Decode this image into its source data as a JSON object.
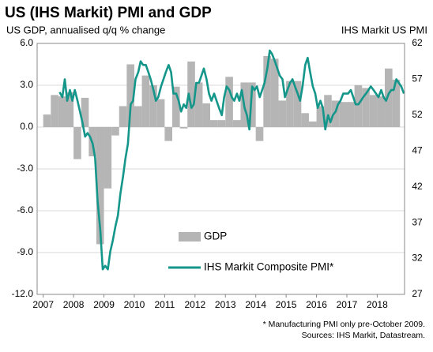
{
  "chart_data": {
    "type": "bar",
    "title": "US (IHS Markit) PMI and GDP",
    "y_label": "US GDP, annualised q/q % change",
    "y2_label": "IHS Markit  US PMI",
    "footnote": "* Manufacturing PMI only pre-October 2009.",
    "source": "Sources: IHS Markit, Datastream.",
    "xlim": [
      2006.8,
      2018.9
    ],
    "xticks": [
      2007,
      2008,
      2009,
      2010,
      2011,
      2012,
      2013,
      2014,
      2015,
      2016,
      2017,
      2018
    ],
    "ylim": [
      -12,
      6
    ],
    "yticks": [
      {
        "value": -12,
        "label": "-12.0"
      },
      {
        "value": -9,
        "label": "-9.0"
      },
      {
        "value": -6,
        "label": "-6.0"
      },
      {
        "value": -3,
        "label": "-3.0"
      },
      {
        "value": 0,
        "label": "0.0"
      },
      {
        "value": 3,
        "label": "3.0"
      },
      {
        "value": 6,
        "label": "6.0"
      }
    ],
    "y2lim": [
      27,
      62
    ],
    "y2ticks": [
      27,
      32,
      37,
      42,
      47,
      52,
      57,
      62
    ],
    "grid": true,
    "series": [
      {
        "name": "GDP",
        "type": "bar",
        "color": "#b5b5b5",
        "x": [
          2007.125,
          2007.375,
          2007.625,
          2007.875,
          2008.125,
          2008.375,
          2008.625,
          2008.875,
          2009.125,
          2009.375,
          2009.625,
          2009.875,
          2010.125,
          2010.375,
          2010.625,
          2010.875,
          2011.125,
          2011.375,
          2011.625,
          2011.875,
          2012.125,
          2012.375,
          2012.625,
          2012.875,
          2013.125,
          2013.375,
          2013.625,
          2013.875,
          2014.125,
          2014.375,
          2014.625,
          2014.875,
          2015.125,
          2015.375,
          2015.625,
          2015.875,
          2016.125,
          2016.375,
          2016.625,
          2016.875,
          2017.125,
          2017.375,
          2017.625,
          2017.875,
          2018.125,
          2018.375,
          2018.625
        ],
        "values": [
          0.9,
          2.3,
          2.2,
          2.5,
          -2.3,
          2.1,
          -2.1,
          -8.4,
          -4.4,
          -0.6,
          1.5,
          4.5,
          1.5,
          3.7,
          3.0,
          2.0,
          -1.0,
          2.9,
          -0.1,
          4.7,
          3.2,
          1.7,
          0.5,
          0.5,
          3.6,
          0.5,
          3.2,
          3.2,
          -1.0,
          5.1,
          4.9,
          1.9,
          3.3,
          3.3,
          1.0,
          0.4,
          1.5,
          2.3,
          1.9,
          1.8,
          1.8,
          3.0,
          2.8,
          2.3,
          2.2,
          4.2,
          3.4
        ]
      },
      {
        "name": "IHS Markit Composite PMI*",
        "type": "line",
        "axis": "y2",
        "color": "#14968a",
        "x": [
          2007.54,
          2007.63,
          2007.71,
          2007.79,
          2007.88,
          2007.96,
          2008.04,
          2008.13,
          2008.21,
          2008.29,
          2008.38,
          2008.46,
          2008.54,
          2008.63,
          2008.71,
          2008.79,
          2008.88,
          2008.96,
          2009.04,
          2009.13,
          2009.21,
          2009.29,
          2009.38,
          2009.46,
          2009.54,
          2009.63,
          2009.71,
          2009.79,
          2009.88,
          2009.96,
          2010.04,
          2010.13,
          2010.21,
          2010.29,
          2010.38,
          2010.46,
          2010.54,
          2010.63,
          2010.71,
          2010.79,
          2010.88,
          2010.96,
          2011.04,
          2011.13,
          2011.21,
          2011.29,
          2011.38,
          2011.46,
          2011.54,
          2011.63,
          2011.71,
          2011.79,
          2011.88,
          2011.96,
          2012.04,
          2012.13,
          2012.21,
          2012.29,
          2012.38,
          2012.46,
          2012.54,
          2012.63,
          2012.71,
          2012.79,
          2012.88,
          2012.96,
          2013.04,
          2013.13,
          2013.21,
          2013.29,
          2013.38,
          2013.46,
          2013.54,
          2013.63,
          2013.71,
          2013.79,
          2013.88,
          2013.96,
          2014.04,
          2014.13,
          2014.21,
          2014.29,
          2014.38,
          2014.46,
          2014.54,
          2014.63,
          2014.71,
          2014.79,
          2014.88,
          2014.96,
          2015.04,
          2015.13,
          2015.21,
          2015.29,
          2015.38,
          2015.46,
          2015.54,
          2015.63,
          2015.71,
          2015.79,
          2015.88,
          2015.96,
          2016.04,
          2016.13,
          2016.21,
          2016.29,
          2016.38,
          2016.46,
          2016.54,
          2016.63,
          2016.71,
          2016.79,
          2016.88,
          2016.96,
          2017.04,
          2017.13,
          2017.21,
          2017.29,
          2017.38,
          2017.46,
          2017.54,
          2017.63,
          2017.71,
          2017.79,
          2017.88,
          2017.96,
          2018.04,
          2018.13,
          2018.21,
          2018.29,
          2018.38,
          2018.46,
          2018.54,
          2018.63,
          2018.71,
          2018.79,
          2018.88
        ],
        "values": [
          55.2,
          54.5,
          57.0,
          54.0,
          55.5,
          54.0,
          55.5,
          54.0,
          52.5,
          51.0,
          49.0,
          49.5,
          49.0,
          48.0,
          46.0,
          40.0,
          36.0,
          30.5,
          31.0,
          30.5,
          33.0,
          34.5,
          36.5,
          38.0,
          41.0,
          43.5,
          46.0,
          48.0,
          53.5,
          54.0,
          57.0,
          58.0,
          59.5,
          59.0,
          59.0,
          58.0,
          57.0,
          55.5,
          54.0,
          54.5,
          56.0,
          57.0,
          58.0,
          59.0,
          58.0,
          55.0,
          55.0,
          54.0,
          52.5,
          53.5,
          53.0,
          55.0,
          53.0,
          53.5,
          56.5,
          56.5,
          57.5,
          58.5,
          57.0,
          55.0,
          54.0,
          55.0,
          54.0,
          53.0,
          52.0,
          54.5,
          56.0,
          55.5,
          54.5,
          54.0,
          55.0,
          54.0,
          55.5,
          53.0,
          52.0,
          50.0,
          56.0,
          55.5,
          56.0,
          54.5,
          55.5,
          56.5,
          58.5,
          61.0,
          60.5,
          59.5,
          58.5,
          57.5,
          57.0,
          54.5,
          55.5,
          56.5,
          57.0,
          56.0,
          55.0,
          54.0,
          56.0,
          59.0,
          60.0,
          58.0,
          56.0,
          55.0,
          53.0,
          54.0,
          53.0,
          50.0,
          52.0,
          51.0,
          52.0,
          52.5,
          53.5,
          54.0,
          55.0,
          55.0,
          55.0,
          55.5,
          54.5,
          53.5,
          53.5,
          54.0,
          54.5,
          55.0,
          55.5,
          56.0,
          55.5,
          55.0,
          54.5,
          55.5,
          54.5,
          54.0,
          55.0,
          55.5,
          55.5,
          57.0,
          56.5,
          56.0,
          55.0
        ]
      }
    ]
  }
}
